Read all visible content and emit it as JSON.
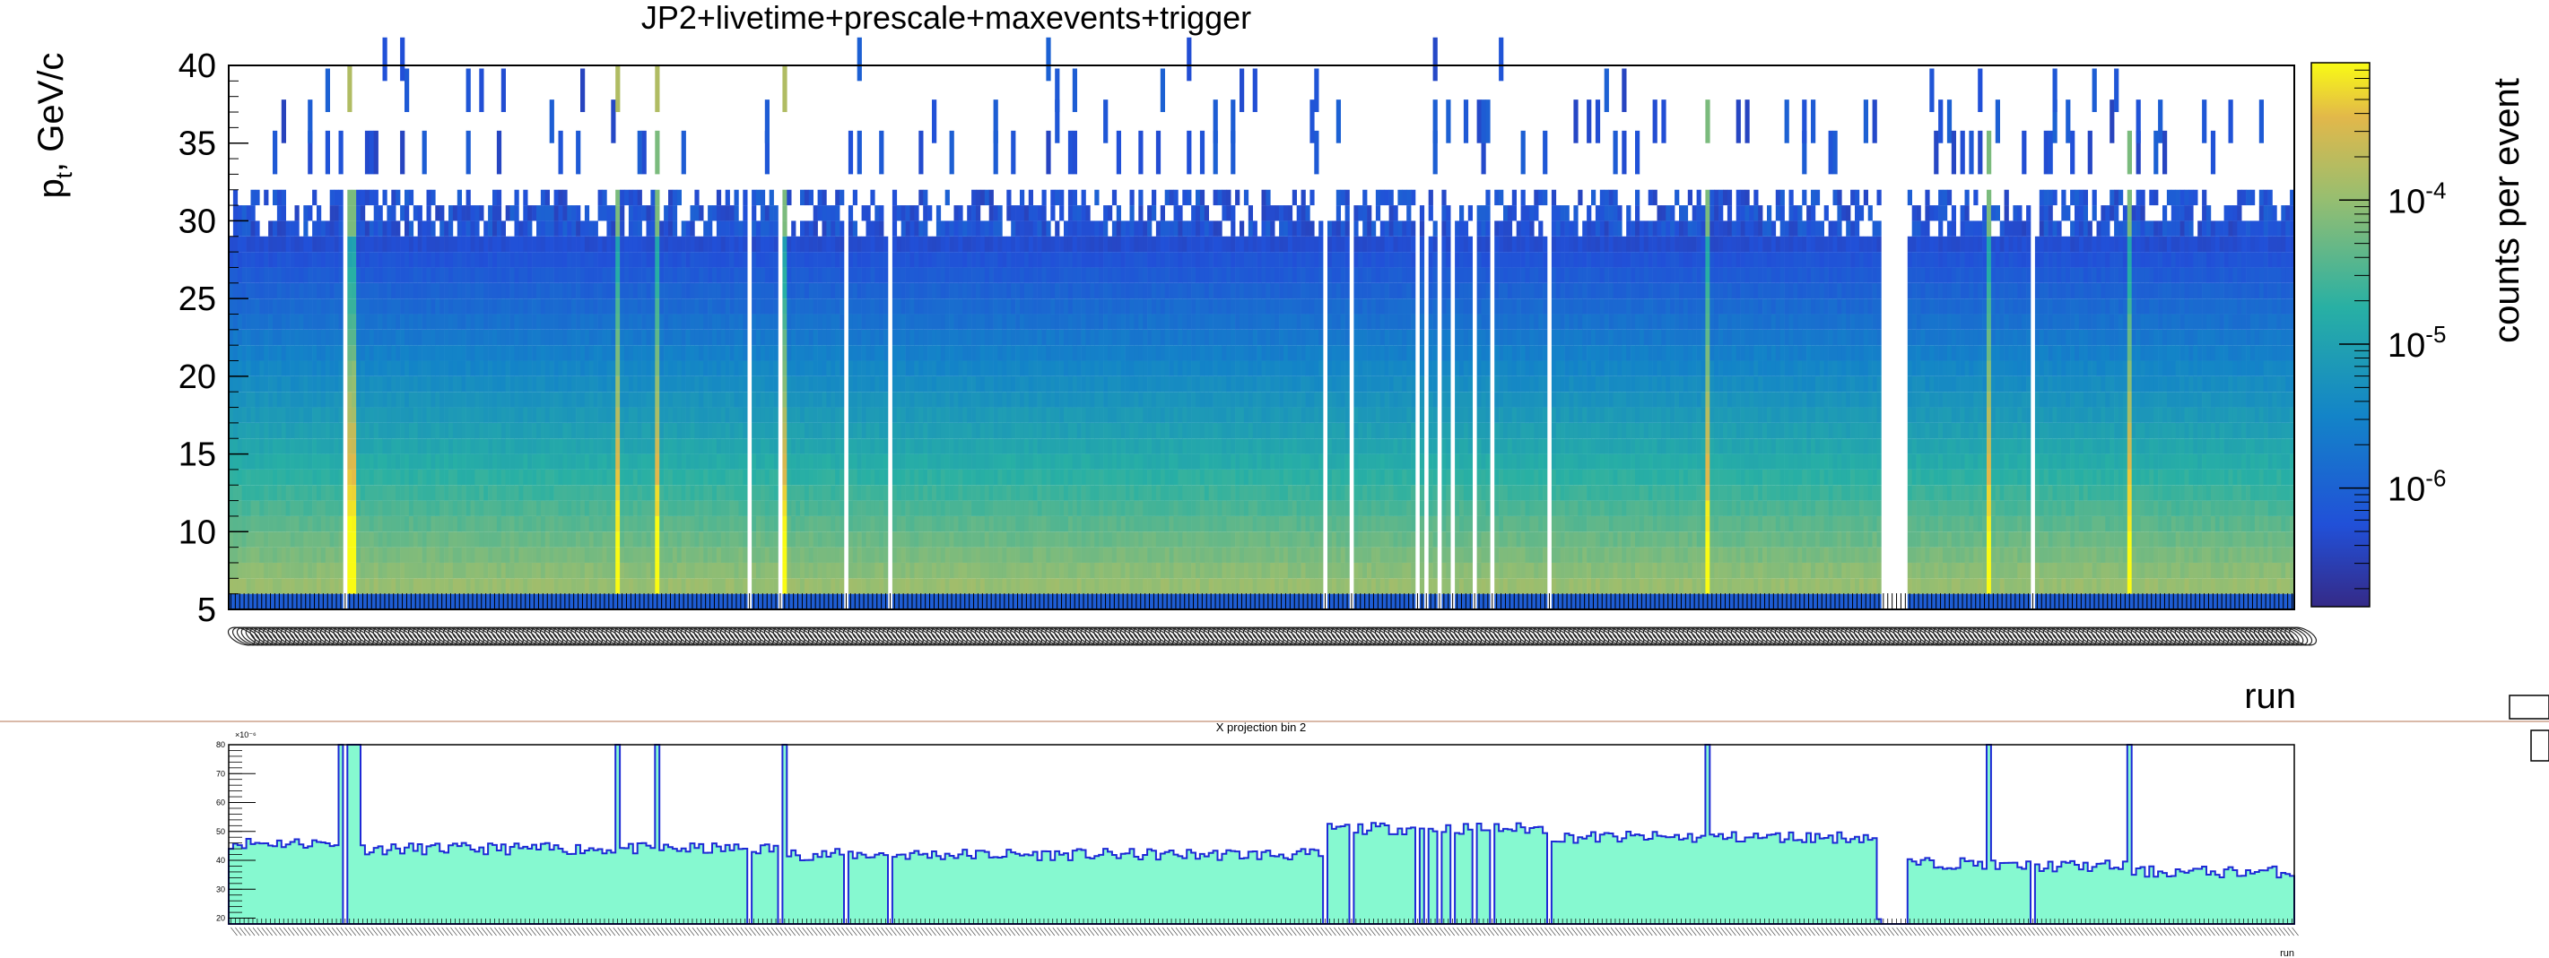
{
  "chart_data": [
    {
      "type": "heatmap",
      "title": "JP2+livetime+prescale+maxevents+trigger",
      "xlabel": "run",
      "ylabel": "p",
      "ylabel_sub": "t",
      "ylabel_rest": ", GeV/c",
      "zlabel": "counts per event",
      "z_scale": "log",
      "ylim": [
        5,
        40
      ],
      "y_ticks": [
        "5",
        "10",
        "15",
        "20",
        "25",
        "30",
        "35",
        "40"
      ],
      "y_tick_values": [
        5,
        10,
        15,
        20,
        25,
        30,
        35,
        40
      ],
      "z_ticks": [
        {
          "base": "10",
          "exp": "-6",
          "value": 1e-06
        },
        {
          "base": "10",
          "exp": "-5",
          "value": 1e-05
        },
        {
          "base": "10",
          "exp": "-4",
          "value": 0.0001
        }
      ],
      "zlim": [
        1.5e-07,
        0.0009
      ],
      "n_runs": 470,
      "empty_runs": [
        26,
        118,
        125,
        140,
        150,
        249,
        255,
        270,
        272,
        275,
        278,
        283,
        287,
        300,
        376,
        377,
        378,
        379,
        380,
        381,
        410
      ],
      "bright_runs": [
        27,
        28,
        88,
        97,
        126,
        336,
        381,
        400,
        432
      ],
      "legend": "right colorbar"
    },
    {
      "type": "bar",
      "title": "X projection bin 2",
      "xlabel": "run",
      "y_multiplier": "×10⁻⁶",
      "ylim": [
        18,
        80
      ],
      "y_ticks": [
        "20",
        "30",
        "40",
        "50",
        "60",
        "70",
        "80"
      ],
      "y_tick_values": [
        20,
        30,
        40,
        50,
        60,
        70,
        80
      ],
      "n_runs": 470,
      "fill_color": "#86f9d0",
      "line_color": "#1e29d6",
      "segments": [
        {
          "from": 0,
          "to": 25,
          "level": 46
        },
        {
          "from": 25,
          "to": 30,
          "level": 80
        },
        {
          "from": 30,
          "to": 88,
          "level": 44
        },
        {
          "from": 88,
          "to": 89,
          "level": 80
        },
        {
          "from": 89,
          "to": 97,
          "level": 44
        },
        {
          "from": 97,
          "to": 98,
          "level": 80
        },
        {
          "from": 98,
          "to": 126,
          "level": 44
        },
        {
          "from": 126,
          "to": 127,
          "level": 80
        },
        {
          "from": 127,
          "to": 250,
          "level": 42
        },
        {
          "from": 250,
          "to": 270,
          "level": 51
        },
        {
          "from": 270,
          "to": 300,
          "level": 51
        },
        {
          "from": 300,
          "to": 336,
          "level": 48
        },
        {
          "from": 336,
          "to": 337,
          "level": 80
        },
        {
          "from": 337,
          "to": 375,
          "level": 48
        },
        {
          "from": 375,
          "to": 382,
          "level": 19
        },
        {
          "from": 382,
          "to": 400,
          "level": 39
        },
        {
          "from": 400,
          "to": 401,
          "level": 80
        },
        {
          "from": 401,
          "to": 432,
          "level": 38
        },
        {
          "from": 432,
          "to": 433,
          "level": 80
        },
        {
          "from": 433,
          "to": 470,
          "level": 36
        }
      ]
    }
  ]
}
